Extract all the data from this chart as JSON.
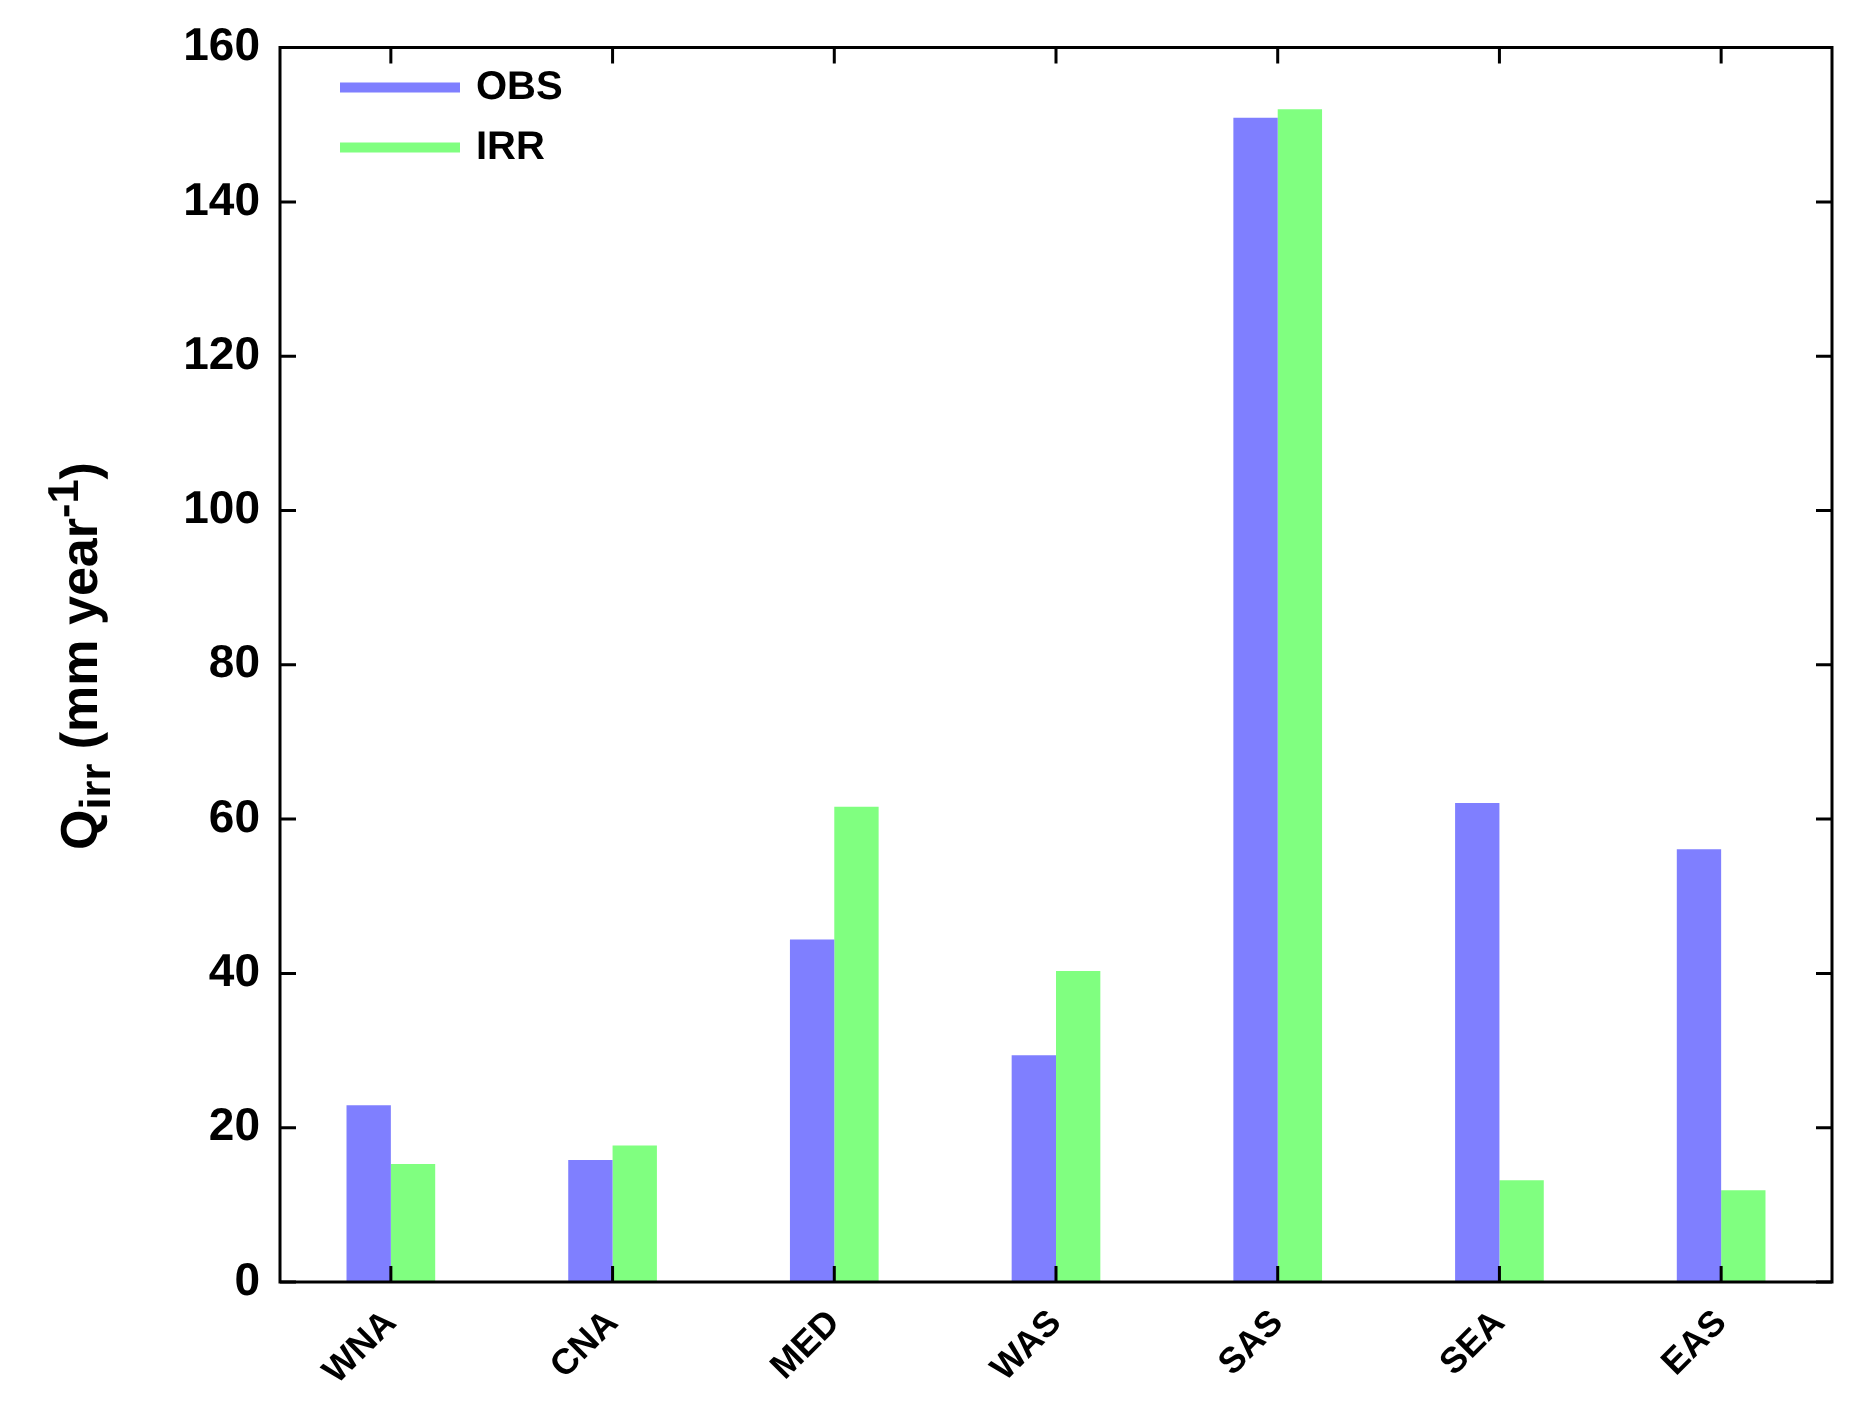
{
  "chart_data": {
    "type": "bar",
    "ylabel": "Q$_{irr}$ (mm year$^{-1}$)",
    "categories": [
      "WNA",
      "CNA",
      "MED",
      "WAS",
      "SAS",
      "SEA",
      "EAS"
    ],
    "series": [
      {
        "name": "OBS",
        "color": "#7f7fff",
        "values": [
          22.9,
          15.8,
          44.4,
          29.4,
          150.9,
          62.1,
          56.1
        ]
      },
      {
        "name": "IRR",
        "color": "#80ff80",
        "values": [
          15.3,
          17.7,
          61.6,
          40.3,
          152,
          13.2,
          11.9
        ]
      }
    ],
    "ylim": [
      0,
      160
    ],
    "yticks": [
      0,
      20,
      40,
      60,
      80,
      100,
      120,
      140,
      160
    ],
    "grid": false,
    "legend": "top left"
  }
}
